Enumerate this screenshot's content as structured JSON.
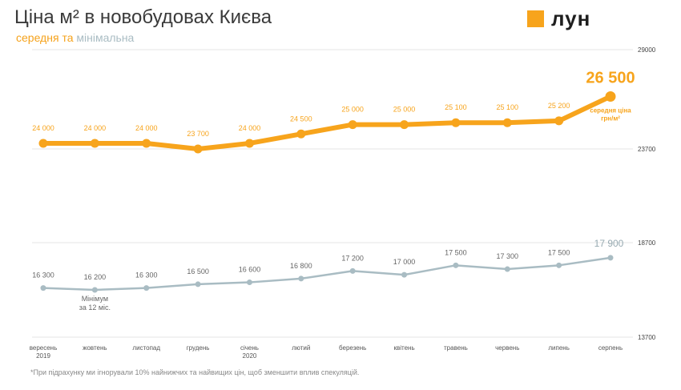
{
  "title": "Ціна м² в новобудовах Києва",
  "subtitle": {
    "avg": "середня",
    "and": "та",
    "min": "мінімальна"
  },
  "logo": {
    "text": "лун"
  },
  "footnote": "*При підрахунку ми ігнорували 10% найнижчих та найвищих цін, щоб зменшити вплив спекуляцій.",
  "chart_data": {
    "type": "line",
    "categories": [
      [
        "вересень",
        "2019"
      ],
      [
        "жовтень"
      ],
      [
        "листопад"
      ],
      [
        "грудень"
      ],
      [
        "січень",
        "2020"
      ],
      [
        "лютий"
      ],
      [
        "березень"
      ],
      [
        "квітень"
      ],
      [
        "травень"
      ],
      [
        "червень"
      ],
      [
        "липень"
      ],
      [
        "серпень"
      ]
    ],
    "series": [
      {
        "key": "average",
        "color": "#f7a41c",
        "values": [
          24000,
          24000,
          24000,
          23700,
          24000,
          24500,
          25000,
          25000,
          25100,
          25100,
          25200,
          26500
        ],
        "labels": [
          "24 000",
          "24 000",
          "24 000",
          "23 700",
          "24 000",
          "24 500",
          "25 000",
          "25 000",
          "25 100",
          "25 100",
          "25 200",
          "26 500"
        ],
        "end_note": [
          "середня ціна",
          "грн/м²"
        ],
        "ylim": [
          23700,
          29000
        ],
        "y_ticks": [
          "29000",
          "23700"
        ]
      },
      {
        "key": "minimum",
        "color": "#a9bcc3",
        "values": [
          16300,
          16200,
          16300,
          16500,
          16600,
          16800,
          17200,
          17000,
          17500,
          17300,
          17500,
          17900
        ],
        "labels": [
          "16 300",
          "16 200",
          "16 300",
          "16 500",
          "16 600",
          "16 800",
          "17 200",
          "17 000",
          "17 500",
          "17 300",
          "17 500",
          "17 900"
        ],
        "min_note": [
          "Мінімум",
          "за 12 міс."
        ],
        "min_note_index": 1,
        "ylim": [
          13700,
          18700
        ],
        "y_ticks": [
          "18700",
          "13700"
        ]
      }
    ],
    "grid": true
  }
}
